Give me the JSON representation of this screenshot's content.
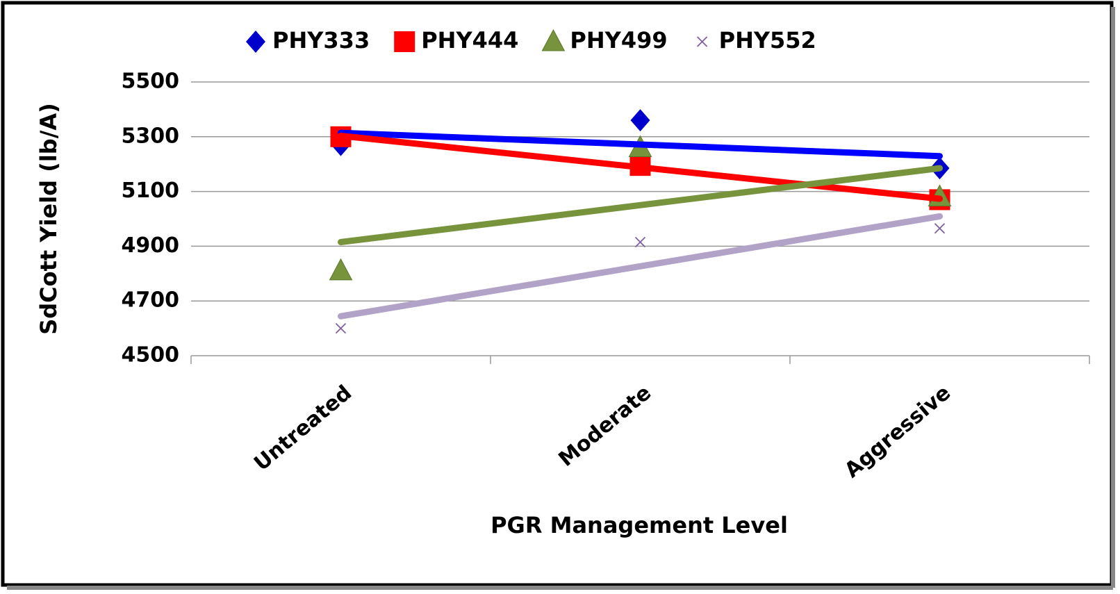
{
  "chart_data": {
    "type": "scatter",
    "x_label": "PGR Management Level",
    "y_label": "SdCott Yield (lb/A)",
    "categories": [
      "Untreated",
      "Moderate",
      "Aggressive"
    ],
    "series": [
      {
        "name": "PHY333",
        "color": "#0000cc",
        "trend_color": "#0000ff",
        "marker": "diamond",
        "values": [
          5270,
          5360,
          5185
        ]
      },
      {
        "name": "PHY444",
        "color": "#ff0000",
        "trend_color": "#ff0000",
        "marker": "square",
        "values": [
          5300,
          5195,
          5070
        ]
      },
      {
        "name": "PHY499",
        "color": "#77933c",
        "trend_color": "#77933c",
        "marker": "triangle",
        "values": [
          4810,
          5260,
          5080
        ]
      },
      {
        "name": "PHY552",
        "color": "#7f5fa0",
        "trend_color": "#b2a2c7",
        "marker": "x",
        "values": [
          4600,
          4915,
          4965
        ]
      }
    ],
    "trendline": "linear",
    "ylim": [
      4500,
      5500
    ],
    "yticks": [
      4500,
      4700,
      4900,
      5100,
      5300,
      5500
    ],
    "grid": true,
    "legend": "top"
  }
}
